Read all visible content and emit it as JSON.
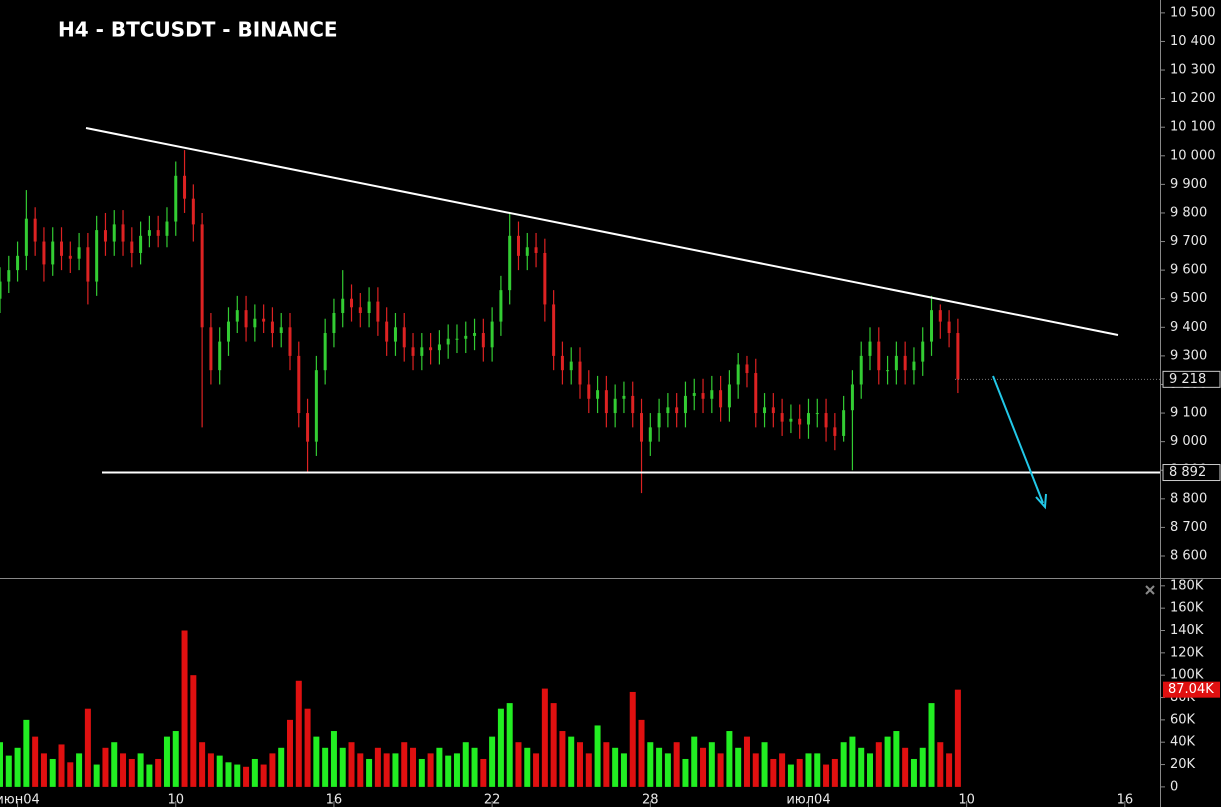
{
  "chart_data": [
    {
      "type": "candlestick",
      "title": "H4 - BTCUSDT - BINANCE",
      "up_color": "#33cc33",
      "down_color": "#dd2222",
      "xlim": [
        0,
        132
      ],
      "xticks": [
        {
          "value": 2,
          "label": "июн04"
        },
        {
          "value": 20,
          "label": "10"
        },
        {
          "value": 38,
          "label": "16"
        },
        {
          "value": 56,
          "label": "22"
        },
        {
          "value": 74,
          "label": "28"
        },
        {
          "value": 92,
          "label": "июл04"
        },
        {
          "value": 110,
          "label": "10"
        },
        {
          "value": 128,
          "label": "16"
        }
      ],
      "ylim": [
        8523,
        10545
      ],
      "yticks": [
        {
          "value": 8600,
          "label": "8 600"
        },
        {
          "value": 8700,
          "label": "8 700"
        },
        {
          "value": 8800,
          "label": "8 800"
        },
        {
          "value": 8900,
          "label": "8 900"
        },
        {
          "value": 9000,
          "label": "9 000"
        },
        {
          "value": 9100,
          "label": "9 100"
        },
        {
          "value": 9200,
          "label": "9 200"
        },
        {
          "value": 9300,
          "label": "9 300"
        },
        {
          "value": 9400,
          "label": "9 400"
        },
        {
          "value": 9500,
          "label": "9 500"
        },
        {
          "value": 9600,
          "label": "9 600"
        },
        {
          "value": 9700,
          "label": "9 700"
        },
        {
          "value": 9800,
          "label": "9 800"
        },
        {
          "value": 9900,
          "label": "9 900"
        },
        {
          "value": 10000,
          "label": "10 000"
        },
        {
          "value": 10100,
          "label": "10 100"
        },
        {
          "value": 10200,
          "label": "10 200"
        },
        {
          "value": 10300,
          "label": "10 300"
        },
        {
          "value": 10400,
          "label": "10 400"
        },
        {
          "value": 10500,
          "label": "10 500"
        }
      ],
      "last_price": {
        "value": 9218,
        "label": "9 218"
      },
      "level": {
        "value": 8892,
        "label": "8 892"
      },
      "open": [
        9500,
        9560,
        9600,
        9650,
        9780,
        9700,
        9620,
        9700,
        9650,
        9640,
        9680,
        9560,
        9740,
        9700,
        9760,
        9700,
        9660,
        9720,
        9740,
        9720,
        9770,
        9930,
        9850,
        9760,
        9400,
        9250,
        9350,
        9420,
        9460,
        9400,
        9430,
        9420,
        9380,
        9400,
        9300,
        9100,
        9000,
        9250,
        9380,
        9450,
        9500,
        9470,
        9450,
        9490,
        9420,
        9350,
        9400,
        9330,
        9300,
        9330,
        9320,
        9340,
        9360,
        9360,
        9370,
        9380,
        9330,
        9420,
        9530,
        9720,
        9650,
        9680,
        9660,
        9480,
        9300,
        9250,
        9280,
        9200,
        9150,
        9180,
        9100,
        9150,
        9160,
        9100,
        9000,
        9050,
        9100,
        9120,
        9100,
        9160,
        9170,
        9150,
        9180,
        9120,
        9200,
        9270,
        9240,
        9100,
        9120,
        9100,
        9070,
        9080,
        9060,
        9100,
        9100,
        9050,
        9020,
        9110,
        9200,
        9300,
        9350,
        9250,
        9250,
        9300,
        9250,
        9280,
        9350,
        9460,
        9420,
        9380
      ],
      "high": [
        9610,
        9650,
        9700,
        9880,
        9820,
        9750,
        9750,
        9750,
        9700,
        9730,
        9730,
        9790,
        9800,
        9810,
        9810,
        9750,
        9770,
        9790,
        9790,
        9820,
        9980,
        10020,
        9900,
        9800,
        9450,
        9400,
        9470,
        9510,
        9510,
        9480,
        9480,
        9470,
        9450,
        9450,
        9350,
        9150,
        9300,
        9430,
        9500,
        9600,
        9550,
        9520,
        9540,
        9540,
        9470,
        9450,
        9450,
        9380,
        9380,
        9380,
        9390,
        9410,
        9410,
        9420,
        9430,
        9430,
        9470,
        9580,
        9800,
        9770,
        9730,
        9730,
        9710,
        9530,
        9350,
        9330,
        9330,
        9250,
        9230,
        9230,
        9200,
        9210,
        9210,
        9150,
        9100,
        9150,
        9170,
        9170,
        9210,
        9220,
        9220,
        9230,
        9230,
        9250,
        9310,
        9300,
        9290,
        9170,
        9170,
        9150,
        9130,
        9130,
        9150,
        9150,
        9150,
        9100,
        9160,
        9250,
        9350,
        9400,
        9400,
        9300,
        9350,
        9350,
        9330,
        9400,
        9510,
        9480,
        9460,
        9430
      ],
      "low": [
        9450,
        9520,
        9560,
        9600,
        9650,
        9560,
        9580,
        9600,
        9590,
        9600,
        9480,
        9510,
        9650,
        9650,
        9650,
        9610,
        9620,
        9680,
        9680,
        9680,
        9720,
        9800,
        9700,
        9050,
        9200,
        9200,
        9300,
        9380,
        9350,
        9350,
        9380,
        9330,
        9330,
        9250,
        9050,
        8890,
        8950,
        9200,
        9330,
        9400,
        9420,
        9400,
        9400,
        9370,
        9300,
        9300,
        9280,
        9250,
        9250,
        9270,
        9270,
        9290,
        9310,
        9310,
        9320,
        9280,
        9280,
        9370,
        9480,
        9600,
        9600,
        9610,
        9420,
        9250,
        9200,
        9200,
        9150,
        9100,
        9100,
        9050,
        9050,
        9100,
        9050,
        8820,
        8950,
        9000,
        9050,
        9050,
        9050,
        9110,
        9100,
        9100,
        9070,
        9070,
        9150,
        9190,
        9050,
        9050,
        9050,
        9020,
        9030,
        9010,
        9010,
        9050,
        9000,
        8970,
        9000,
        8900,
        9150,
        9250,
        9200,
        9200,
        9200,
        9200,
        9200,
        9230,
        9300,
        9360,
        9330,
        9170
      ],
      "close": [
        9560,
        9600,
        9650,
        9780,
        9700,
        9620,
        9700,
        9650,
        9640,
        9680,
        9560,
        9740,
        9700,
        9760,
        9700,
        9660,
        9720,
        9740,
        9720,
        9770,
        9930,
        9850,
        9760,
        9400,
        9250,
        9350,
        9420,
        9460,
        9400,
        9430,
        9420,
        9380,
        9400,
        9300,
        9100,
        9000,
        9250,
        9380,
        9450,
        9500,
        9470,
        9450,
        9490,
        9420,
        9350,
        9400,
        9330,
        9300,
        9330,
        9320,
        9340,
        9360,
        9360,
        9370,
        9380,
        9330,
        9420,
        9530,
        9720,
        9650,
        9680,
        9660,
        9480,
        9300,
        9250,
        9280,
        9200,
        9150,
        9180,
        9100,
        9150,
        9160,
        9100,
        9000,
        9050,
        9100,
        9120,
        9100,
        9160,
        9170,
        9150,
        9180,
        9120,
        9200,
        9270,
        9240,
        9100,
        9120,
        9100,
        9070,
        9080,
        9060,
        9100,
        9100,
        9050,
        9020,
        9110,
        9200,
        9300,
        9350,
        9250,
        9250,
        9300,
        9250,
        9280,
        9350,
        9460,
        9420,
        9380,
        9218
      ]
    },
    {
      "type": "bar",
      "up_color": "#22ee22",
      "down_color": "#e01010",
      "ylim": [
        -18,
        187
      ],
      "yticks": [
        0,
        {
          "value": 20,
          "label": "20K"
        },
        {
          "value": 40,
          "label": "40K"
        },
        {
          "value": 60,
          "label": "60K"
        },
        {
          "value": 80,
          "label": "80K"
        },
        {
          "value": 100,
          "label": "100K"
        },
        {
          "value": 120,
          "label": "120K"
        },
        {
          "value": 140,
          "label": "140K"
        },
        {
          "value": 160,
          "label": "160K"
        },
        {
          "value": 180,
          "label": "180K"
        }
      ],
      "last_value": {
        "value": 87.04,
        "label": "87.04K"
      },
      "values": [
        40,
        28,
        35,
        60,
        45,
        30,
        25,
        38,
        22,
        30,
        70,
        20,
        35,
        40,
        30,
        25,
        30,
        20,
        25,
        45,
        50,
        140,
        100,
        40,
        30,
        28,
        22,
        20,
        18,
        25,
        20,
        30,
        35,
        60,
        95,
        70,
        45,
        35,
        50,
        35,
        40,
        30,
        25,
        35,
        30,
        30,
        40,
        35,
        25,
        30,
        35,
        28,
        30,
        40,
        35,
        25,
        45,
        70,
        75,
        40,
        35,
        30,
        88,
        75,
        50,
        45,
        40,
        30,
        55,
        40,
        35,
        30,
        85,
        60,
        40,
        35,
        30,
        40,
        25,
        45,
        35,
        40,
        30,
        50,
        35,
        45,
        30,
        40,
        25,
        30,
        20,
        25,
        30,
        30,
        20,
        25,
        40,
        45,
        35,
        30,
        40,
        45,
        50,
        35,
        25,
        35,
        75,
        40,
        30,
        87.04
      ]
    }
  ]
}
